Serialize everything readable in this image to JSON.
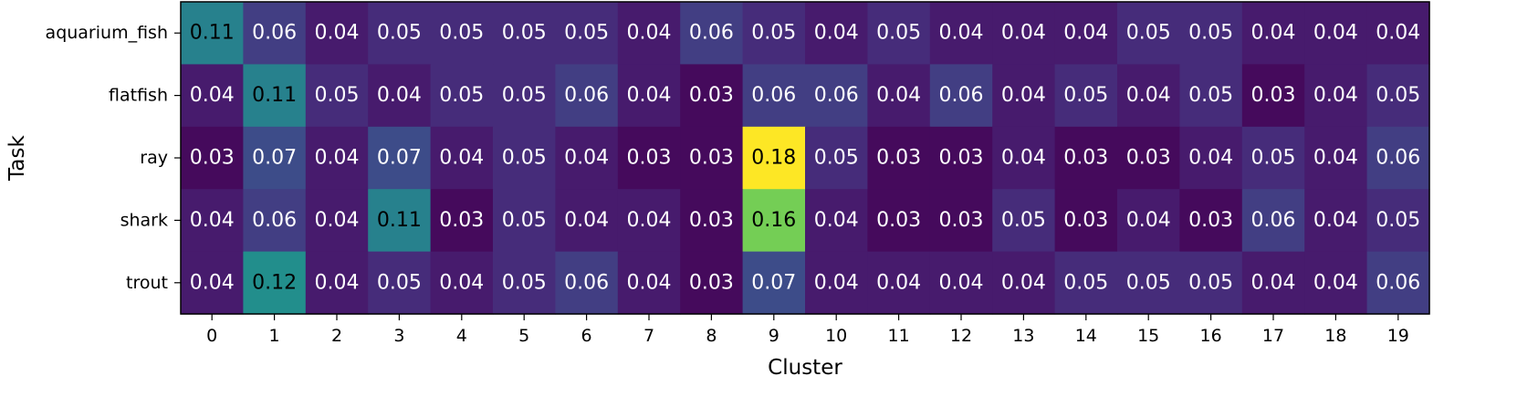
{
  "chart_data": {
    "type": "heatmap",
    "xlabel": "Cluster",
    "ylabel": "Task",
    "rows": [
      "aquarium_fish",
      "flatfish",
      "ray",
      "shark",
      "trout"
    ],
    "columns": [
      "0",
      "1",
      "2",
      "3",
      "4",
      "5",
      "6",
      "7",
      "8",
      "9",
      "10",
      "11",
      "12",
      "13",
      "14",
      "15",
      "16",
      "17",
      "18",
      "19"
    ],
    "values": [
      [
        0.11,
        0.06,
        0.04,
        0.05,
        0.05,
        0.05,
        0.05,
        0.04,
        0.06,
        0.05,
        0.04,
        0.05,
        0.04,
        0.04,
        0.04,
        0.05,
        0.05,
        0.04,
        0.04,
        0.04
      ],
      [
        0.04,
        0.11,
        0.05,
        0.04,
        0.05,
        0.05,
        0.06,
        0.04,
        0.03,
        0.06,
        0.06,
        0.04,
        0.06,
        0.04,
        0.05,
        0.04,
        0.05,
        0.03,
        0.04,
        0.05
      ],
      [
        0.03,
        0.07,
        0.04,
        0.07,
        0.04,
        0.05,
        0.04,
        0.03,
        0.03,
        0.18,
        0.05,
        0.03,
        0.03,
        0.04,
        0.03,
        0.03,
        0.04,
        0.05,
        0.04,
        0.06
      ],
      [
        0.04,
        0.06,
        0.04,
        0.11,
        0.03,
        0.05,
        0.04,
        0.04,
        0.03,
        0.16,
        0.04,
        0.03,
        0.03,
        0.05,
        0.03,
        0.04,
        0.03,
        0.06,
        0.04,
        0.05
      ],
      [
        0.04,
        0.12,
        0.04,
        0.05,
        0.04,
        0.05,
        0.06,
        0.04,
        0.03,
        0.07,
        0.04,
        0.04,
        0.04,
        0.04,
        0.05,
        0.05,
        0.05,
        0.04,
        0.04,
        0.06
      ]
    ],
    "colormap": "viridis",
    "value_range": [
      0.025,
      0.18
    ],
    "annotated": true,
    "grid": false,
    "legend": "none"
  }
}
